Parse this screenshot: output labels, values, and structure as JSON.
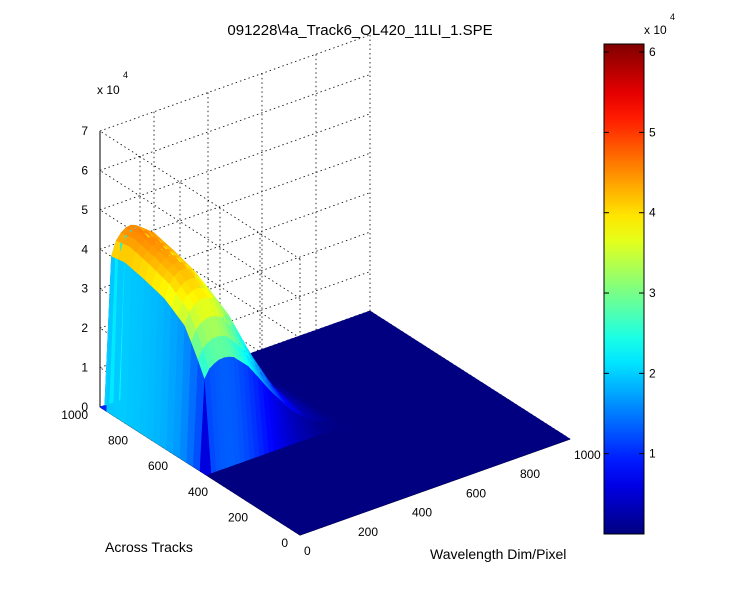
{
  "chart_data": {
    "type": "surface",
    "title": "091228\\4a_Track6_OL420_11LI_1.SPE",
    "xlabel": "Wavelength Dim/Pixel",
    "ylabel": "Across Tracks",
    "zlabel": "",
    "z_exponent_label": "x 10",
    "z_exponent_power": "4",
    "xlim": [
      0,
      1000
    ],
    "ylim": [
      0,
      1000
    ],
    "zlim": [
      0,
      70000
    ],
    "x_ticks": [
      "0",
      "200",
      "400",
      "600",
      "800",
      "1000"
    ],
    "y_ticks": [
      "0",
      "200",
      "400",
      "600",
      "800",
      "1000"
    ],
    "z_ticks": [
      "0",
      "1",
      "2",
      "3",
      "4",
      "5",
      "6",
      "7"
    ],
    "grid": true,
    "colormap": "jet",
    "colorbar": {
      "range": [
        0,
        61000
      ],
      "ticks": [
        "1",
        "2",
        "3",
        "4",
        "5",
        "6"
      ],
      "exponent_label": "x 10",
      "exponent_power": "4"
    },
    "surface": {
      "x_range": [
        0,
        520
      ],
      "y_range": [
        480,
        1000
      ],
      "peak_x": 80,
      "peak_z": 46000,
      "ridge_profile": [
        {
          "x": 0,
          "z": 0
        },
        {
          "x": 10,
          "z": 38000
        },
        {
          "x": 40,
          "z": 44000
        },
        {
          "x": 80,
          "z": 46000
        },
        {
          "x": 120,
          "z": 45000
        },
        {
          "x": 180,
          "z": 38000
        },
        {
          "x": 260,
          "z": 24000
        },
        {
          "x": 340,
          "z": 12000
        },
        {
          "x": 420,
          "z": 4000
        },
        {
          "x": 500,
          "z": 500
        },
        {
          "x": 520,
          "z": 0
        }
      ],
      "track_profile": [
        {
          "y": 480,
          "scale": 0.0
        },
        {
          "y": 500,
          "scale": 0.58
        },
        {
          "y": 550,
          "scale": 0.72
        },
        {
          "y": 600,
          "scale": 0.84
        },
        {
          "y": 700,
          "scale": 0.93
        },
        {
          "y": 800,
          "scale": 0.97
        },
        {
          "y": 900,
          "scale": 1.0
        },
        {
          "y": 980,
          "scale": 0.98
        },
        {
          "y": 1000,
          "scale": 0.0
        }
      ]
    }
  }
}
